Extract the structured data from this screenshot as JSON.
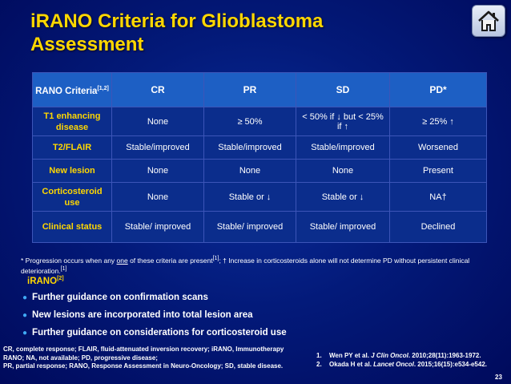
{
  "slide": {
    "title_line1": "iRANO Criteria for Glioblastoma",
    "title_line2": "Assessment",
    "home_icon": "home-icon",
    "page_number": "23"
  },
  "table": {
    "header": {
      "criteria_label": "RANO Criteria",
      "criteria_refs": "[1,2]",
      "cols": [
        "CR",
        "PR",
        "SD",
        "PD*"
      ]
    },
    "rows": [
      {
        "label": "T1 enhancing disease",
        "cells": [
          "None",
          "≥ 50%",
          "< 50% if ↓ but < 25% if ↑",
          "≥ 25% ↑"
        ]
      },
      {
        "label": "T2/FLAIR",
        "cells": [
          "Stable/improved",
          "Stable/improved",
          "Stable/improved",
          "Worsened"
        ]
      },
      {
        "label": "New lesion",
        "cells": [
          "None",
          "None",
          "None",
          "Present"
        ]
      },
      {
        "label": "Corticosteroid use",
        "cells": [
          "None",
          "Stable or ↓",
          "Stable or ↓",
          "NA†"
        ]
      },
      {
        "label": "Clinical status",
        "cells": [
          "Stable/ improved",
          "Stable/ improved",
          "Stable/ improved",
          "Declined"
        ]
      }
    ]
  },
  "footnote": {
    "part1": "* Progression occurs when any ",
    "underlined": "one",
    "part2": " of these criteria are present",
    "ref1": "[1]",
    "part3": "; † Increase in corticosteroids alone will not determine PD without persistent clinical deterioration.",
    "ref2": "[1]"
  },
  "irano": {
    "heading": "iRANO",
    "ref": "[2]",
    "bullets": [
      "Further guidance on confirmation scans",
      "New lesions are incorporated into total lesion area",
      "Further guidance on considerations for corticosteroid use"
    ]
  },
  "abbreviations": {
    "line1": "CR, complete response; FLAIR, fluid-attenuated inversion recovery; iRANO, Immunotherapy",
    "line2": "RANO; NA, not available; PD, progressive disease;",
    "line3": "PR, partial response; RANO, Response Assessment in Neuro-Oncology; SD, stable disease."
  },
  "references": [
    {
      "num": "1.",
      "pre": "Wen PY et al. ",
      "journal": "J Clin Oncol",
      "post": ". 2010;28(11):1963-1972."
    },
    {
      "num": "2.",
      "pre": "Okada H et al. ",
      "journal": "Lancet Oncol",
      "post": ". 2015;16(15):e534-e542."
    }
  ],
  "colors": {
    "title": "#ffd700",
    "header_bg": "#1d5fc4",
    "row_bg": "#0b2d8c",
    "row_label": "#ffd700",
    "bullet_dot": "#3fa9f5"
  }
}
